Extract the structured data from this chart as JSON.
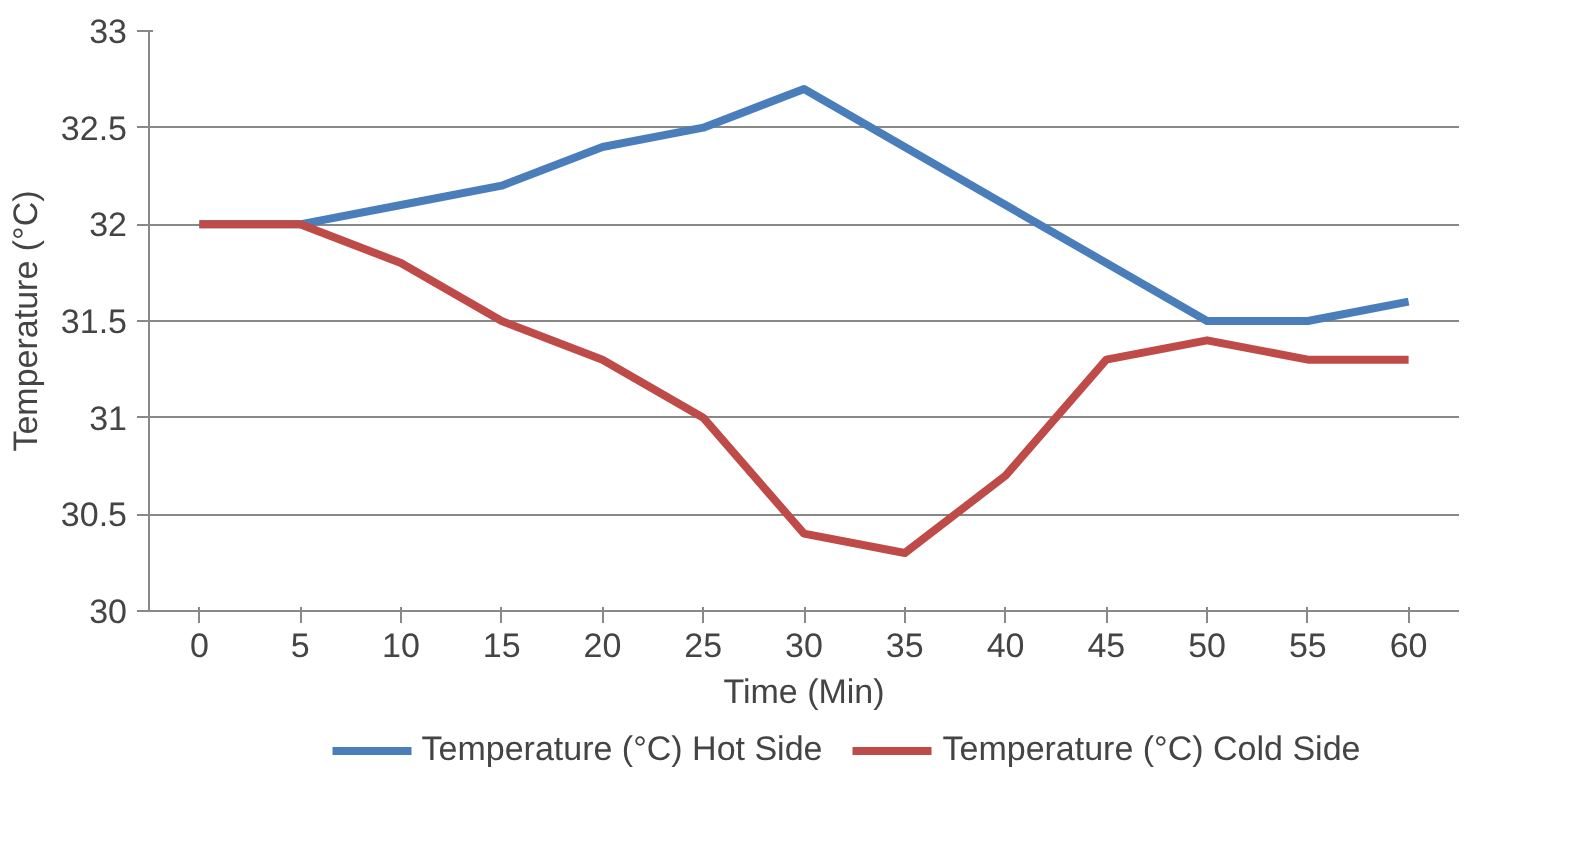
{
  "chart_data": {
    "type": "line",
    "xlabel": "Time (Min)",
    "ylabel": "Temperature (°C)",
    "categories": [
      "0",
      "5",
      "10",
      "15",
      "20",
      "25",
      "30",
      "35",
      "40",
      "45",
      "50",
      "55",
      "60"
    ],
    "series": [
      {
        "name": "Temperature (°C) Hot Side",
        "color": "#4a7ebb",
        "values": [
          32,
          32,
          32.1,
          32.2,
          32.4,
          32.5,
          32.7,
          32.4,
          32.1,
          31.8,
          31.5,
          31.5,
          31.6
        ]
      },
      {
        "name": "Temperature (°C) Cold Side",
        "color": "#be4b48",
        "values": [
          32,
          32,
          31.8,
          31.5,
          31.3,
          31.0,
          30.4,
          30.3,
          30.7,
          31.3,
          31.4,
          31.3,
          31.3
        ]
      }
    ],
    "ylim": [
      30,
      33
    ],
    "yticks": [
      30,
      30.5,
      31,
      31.5,
      32,
      32.5,
      33
    ],
    "grid": "y",
    "legend": "bottom",
    "marker": "none",
    "line_style": "solid"
  }
}
